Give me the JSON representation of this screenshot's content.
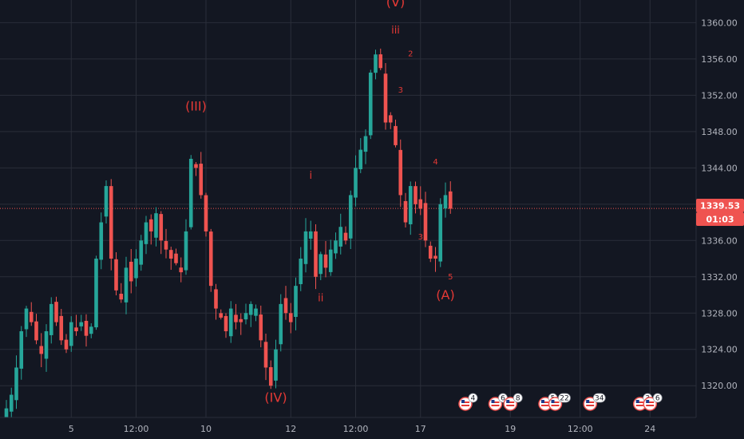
{
  "colors": {
    "background": "#131722",
    "grid": "#2a2e39",
    "up": "#26a69a",
    "down": "#ef5350",
    "wave": "#e53935",
    "price_line": "#ef5350",
    "axis_text": "#b2b5be"
  },
  "chart_data": {
    "type": "candlestick",
    "y_axis": {
      "min": 1316.5,
      "max": 1362.5,
      "ticks": [
        "1360.00",
        "1356.00",
        "1352.00",
        "1348.00",
        "1344.00",
        "1340.00",
        "1336.00",
        "1332.00",
        "1328.00",
        "1324.00",
        "1320.00"
      ],
      "tick_values": [
        1360,
        1356,
        1352,
        1348,
        1344,
        1340,
        1336,
        1332,
        1328,
        1324,
        1320
      ]
    },
    "x_axis": {
      "ticks": [
        "5",
        "12:00",
        "10",
        "12",
        "12:00",
        "17",
        "19",
        "12:00",
        "24"
      ],
      "tick_index": [
        13,
        26,
        40,
        57,
        70,
        83,
        101,
        115,
        129
      ]
    },
    "current_price": {
      "value": 1339.53,
      "label": "1339.53",
      "countdown": "01:03"
    },
    "wave_labels": [
      {
        "text": "(III)",
        "index": 38,
        "price": 1350.3,
        "size": "big"
      },
      {
        "text": "(IV)",
        "index": 54,
        "price": 1318.2,
        "size": "big"
      },
      {
        "text": "(V)",
        "index": 78,
        "price": 1361.8,
        "size": "big"
      },
      {
        "text": "(A)",
        "index": 88,
        "price": 1329.5,
        "size": "big"
      },
      {
        "text": "i",
        "index": 61,
        "price": 1342.8,
        "size": "small"
      },
      {
        "text": "ii",
        "index": 63,
        "price": 1329.3,
        "size": "small"
      },
      {
        "text": "iii",
        "index": 78,
        "price": 1358.8,
        "size": "small"
      },
      {
        "text": "2",
        "index": 81,
        "price": 1356.3,
        "size": "tiny"
      },
      {
        "text": "3",
        "index": 79,
        "price": 1352.3,
        "size": "tiny"
      },
      {
        "text": "3",
        "index": 83,
        "price": 1336.1,
        "size": "tiny"
      },
      {
        "text": "4",
        "index": 86,
        "price": 1344.4,
        "size": "tiny"
      },
      {
        "text": "5",
        "index": 89,
        "price": 1331.7,
        "size": "tiny"
      }
    ],
    "event_markers": [
      {
        "index": 92,
        "text": "4"
      },
      {
        "index": 98,
        "text": "6"
      },
      {
        "index": 101,
        "text": "8"
      },
      {
        "index": 108,
        "text": "5"
      },
      {
        "index": 110,
        "text": "22"
      },
      {
        "index": 117,
        "text": "34"
      },
      {
        "index": 127,
        "text": "3"
      },
      {
        "index": 129,
        "text": "6"
      }
    ],
    "closes": [
      1317.5,
      1319,
      1322,
      1326,
      1328.5,
      1327,
      1325,
      1323.5,
      1326,
      1329,
      1327,
      1325,
      1324,
      1327,
      1326,
      1327,
      1325.5,
      1326.5,
      1334,
      1338,
      1342,
      1334,
      1330.5,
      1329.5,
      1333,
      1331.5,
      1334,
      1336,
      1338,
      1337,
      1339,
      1336,
      1335,
      1334,
      1333.5,
      1332.5,
      1337,
      1345,
      1344,
      1341,
      1337,
      1331,
      1328.5,
      1327.5,
      1326,
      1328.5,
      1327,
      1327,
      1328,
      1329,
      1328.5,
      1325,
      1322,
      1320,
      1324,
      1329,
      1328,
      1327,
      1331,
      1334,
      1337,
      1337,
      1332,
      1334.5,
      1333,
      1335,
      1336,
      1337.5,
      1336,
      1341,
      1344,
      1346,
      1347.5,
      1354.5,
      1356.5,
      1355,
      1349,
      1349,
      1346.5,
      1341,
      1338,
      1342,
      1340,
      1339.5,
      1336,
      1334,
      1334,
      1340,
      1341,
      1339.5
    ]
  }
}
